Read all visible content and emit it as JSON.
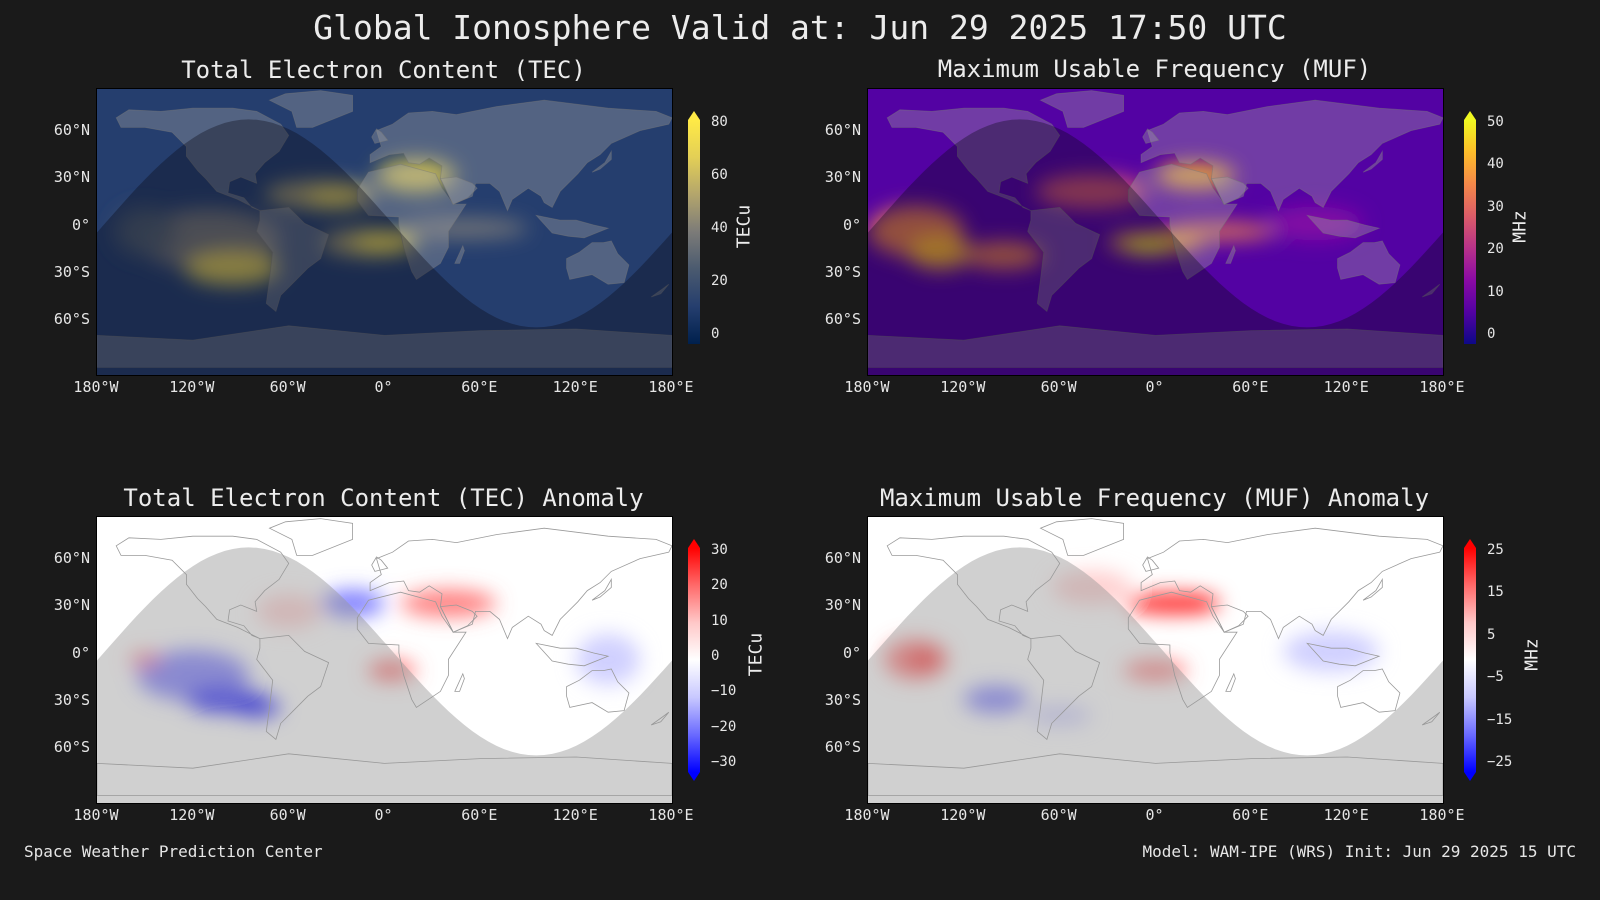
{
  "title": "Global Ionosphere Valid at: Jun 29 2025 17:50 UTC",
  "panels": [
    {
      "title": "Total Electron Content (TEC)",
      "colorbar_label": "TECu",
      "colorbar_ticks": [
        "80",
        "60",
        "40",
        "20",
        "0"
      ],
      "colormap": [
        "#00204d",
        "#253e6e",
        "#4a5a6f",
        "#7c7b78",
        "#b3a56c",
        "#e3cf56",
        "#ffea46"
      ]
    },
    {
      "title": "Maximum Usable Frequency (MUF)",
      "colorbar_label": "MHz",
      "colorbar_ticks": [
        "50",
        "40",
        "30",
        "20",
        "10",
        "0"
      ],
      "colormap": [
        "#0d0887",
        "#5302a3",
        "#8b0aa5",
        "#b83289",
        "#db5c68",
        "#f48849",
        "#febd2a",
        "#f0f921"
      ]
    },
    {
      "title": "Total Electron Content (TEC) Anomaly",
      "colorbar_label": "TECu",
      "colorbar_ticks": [
        "30",
        "20",
        "10",
        "0",
        "−10",
        "−20",
        "−30"
      ],
      "colormap": [
        "#0000ff",
        "#6a6aff",
        "#c8c8ff",
        "#ffffff",
        "#ffc8c8",
        "#ff6a6a",
        "#ff0000"
      ]
    },
    {
      "title": "Maximum Usable Frequency (MUF) Anomaly",
      "colorbar_label": "MHz",
      "colorbar_ticks": [
        "25",
        "15",
        "5",
        "−5",
        "−15",
        "−25"
      ],
      "colormap": [
        "#0000ff",
        "#6a6aff",
        "#c8c8ff",
        "#ffffff",
        "#ffc8c8",
        "#ff6a6a",
        "#ff0000"
      ]
    }
  ],
  "lat_ticks": [
    "60°N",
    "30°N",
    "0°",
    "30°S",
    "60°S"
  ],
  "lon_ticks": [
    "180°W",
    "120°W",
    "60°W",
    "0°",
    "60°E",
    "120°E",
    "180°E"
  ],
  "footer_left": "Space Weather Prediction Center",
  "footer_right": "Model: WAM-IPE (WRS) Init: Jun 29 2025 15 UTC"
}
